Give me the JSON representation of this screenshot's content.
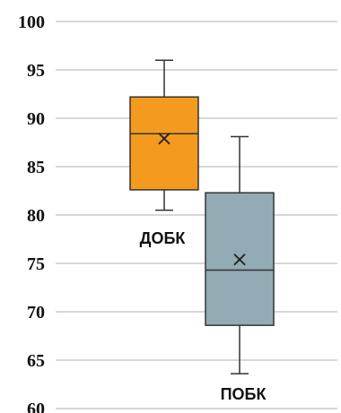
{
  "chart_data": {
    "type": "box",
    "ylim": [
      60,
      100
    ],
    "yticks": [
      60,
      65,
      70,
      75,
      80,
      85,
      90,
      95,
      100
    ],
    "grid": true,
    "series": [
      {
        "name": "ДОБК",
        "color": "#f39a1f",
        "min": 80.5,
        "q1": 82.6,
        "median": 88.4,
        "q3": 92.2,
        "max": 96.0,
        "mean": 87.9
      },
      {
        "name": "ПОБК",
        "color": "#93abb4",
        "min": 63.6,
        "q1": 68.6,
        "median": 74.3,
        "q3": 82.3,
        "max": 88.1,
        "mean": 75.4
      }
    ]
  }
}
